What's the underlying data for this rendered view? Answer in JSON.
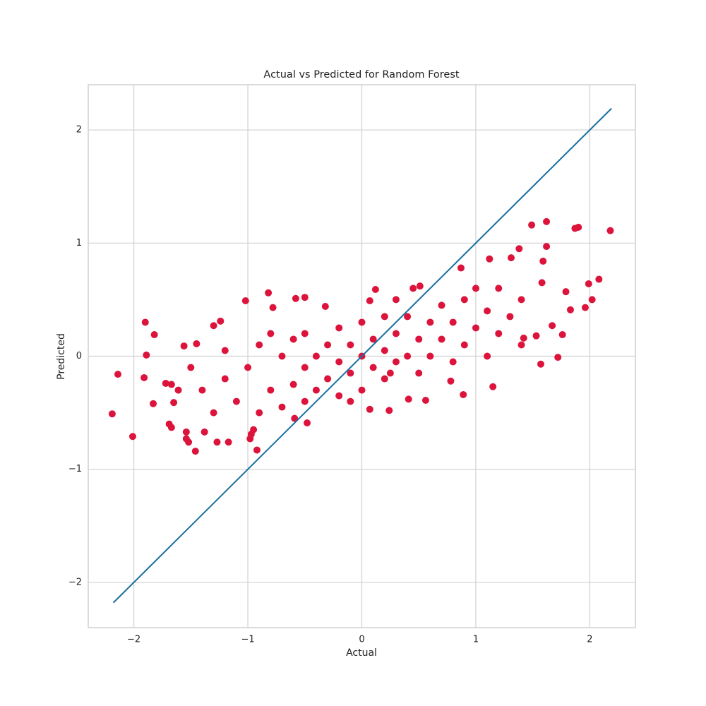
{
  "chart_data": {
    "type": "scatter",
    "title": "Actual vs Predicted for Random Forest",
    "x_label": "Actual",
    "y_label": "Predicted",
    "xlim": [
      -2.4,
      2.4
    ],
    "ylim": [
      -2.4,
      2.4
    ],
    "xticks": [
      {
        "value": -2,
        "label": "−2"
      },
      {
        "value": -1,
        "label": "−1"
      },
      0,
      1,
      2
    ],
    "yticks": [
      {
        "value": -2,
        "label": "−2"
      },
      {
        "value": -1,
        "label": "−1"
      },
      0,
      1,
      2
    ],
    "grid": true,
    "series": [
      {
        "color": "#dc143c",
        "x": [
          -2.19,
          -2.14,
          -2.01,
          -1.9,
          -1.89,
          -1.91,
          -1.82,
          -1.83,
          -1.72,
          -1.67,
          -1.69,
          -1.67,
          -1.65,
          -1.61,
          -1.56,
          -1.54,
          -1.54,
          -1.52,
          -1.46,
          -1.45,
          -1.5,
          -1.38,
          -1.3,
          -1.24,
          -1.27,
          -1.17,
          -1.02,
          -0.82,
          -0.98,
          -0.92,
          -0.78,
          -0.58,
          -0.5,
          -0.32,
          0.07,
          0.12,
          0.25,
          0.07,
          0.45,
          0.51,
          0.87,
          1.12,
          1.31,
          1.38,
          1.49,
          1.62,
          1.62,
          1.59,
          1.58,
          1.87,
          1.9,
          2.18,
          1.99,
          2.08,
          2.02,
          1.96,
          1.83,
          1.79,
          1.76,
          1.67,
          1.72,
          1.57,
          1.53,
          1.42,
          1.15,
          0.89,
          0.78,
          0.56,
          0.41,
          0.24,
          -0.59,
          -0.48,
          -0.97,
          -1.2,
          -1.1,
          -1.0,
          -0.9,
          -0.9,
          -0.8,
          -0.8,
          -0.7,
          -0.7,
          -0.6,
          -0.6,
          -0.5,
          -0.5,
          -0.5,
          -0.4,
          -0.4,
          -0.3,
          -0.3,
          -0.2,
          -0.2,
          -0.2,
          -0.1,
          -0.1,
          0,
          0,
          0,
          0.1,
          0.1,
          0.2,
          0.2,
          0.2,
          0.3,
          0.3,
          0.4,
          0.4,
          0.5,
          0.5,
          0.6,
          0.6,
          0.7,
          0.7,
          0.8,
          0.8,
          0.9,
          0.9,
          1.0,
          1.0,
          1.1,
          1.1,
          1.2,
          1.2,
          1.3,
          1.4,
          1.4,
          -1.3,
          -1.4,
          -1.2,
          -0.95,
          0.3,
          -0.1
        ],
        "y": [
          -0.51,
          -0.16,
          -0.71,
          0.3,
          0.01,
          -0.19,
          0.19,
          -0.42,
          -0.24,
          -0.25,
          -0.6,
          -0.63,
          -0.41,
          -0.3,
          0.09,
          -0.67,
          -0.73,
          -0.76,
          -0.84,
          0.11,
          -0.1,
          -0.67,
          0.27,
          0.31,
          -0.76,
          -0.76,
          0.49,
          0.56,
          -0.73,
          -0.83,
          0.43,
          0.51,
          0.52,
          0.44,
          0.49,
          0.59,
          -0.15,
          -0.47,
          0.6,
          0.62,
          0.78,
          0.86,
          0.87,
          0.95,
          1.16,
          1.19,
          0.97,
          0.84,
          0.65,
          1.13,
          1.14,
          1.11,
          0.64,
          0.68,
          0.5,
          0.43,
          0.41,
          0.57,
          0.19,
          0.27,
          -0.01,
          -0.07,
          0.18,
          0.16,
          -0.27,
          -0.34,
          -0.22,
          -0.39,
          -0.38,
          -0.48,
          -0.55,
          -0.59,
          -0.69,
          -0.2,
          -0.4,
          -0.1,
          -0.5,
          0.1,
          -0.3,
          0.2,
          -0.45,
          0,
          -0.25,
          0.15,
          -0.4,
          -0.1,
          0.2,
          -0.3,
          0,
          -0.2,
          0.1,
          -0.35,
          -0.05,
          0.25,
          -0.15,
          0.1,
          -0.3,
          0,
          0.3,
          -0.1,
          0.15,
          -0.2,
          0.05,
          0.35,
          -0.05,
          0.2,
          0,
          0.35,
          -0.15,
          0.15,
          0.3,
          0,
          0.45,
          0.15,
          -0.05,
          0.3,
          0.5,
          0.1,
          0.25,
          0.6,
          0,
          0.4,
          0.2,
          0.6,
          0.35,
          0.1,
          0.5,
          -0.5,
          -0.3,
          0.05,
          -0.65,
          0.5,
          -0.4
        ]
      }
    ],
    "line": {
      "color": "#1a6fa0",
      "x": [
        -2.18,
        2.19
      ],
      "y": [
        -2.18,
        2.19
      ]
    }
  }
}
